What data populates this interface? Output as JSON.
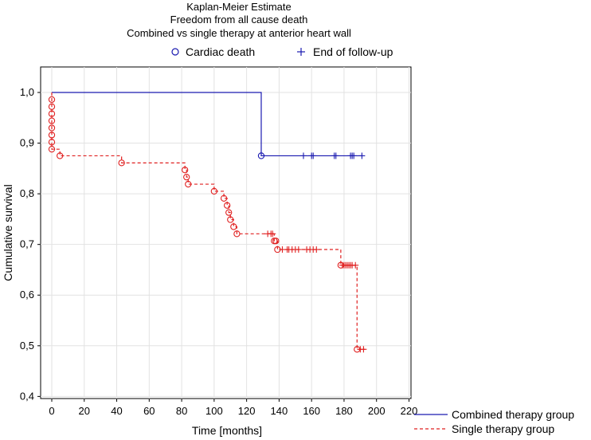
{
  "chart_data": {
    "type": "line",
    "title_lines": [
      "Kaplan-Meier Estimate",
      "Freedom from all cause death",
      "Combined vs single therapy at anterior heart wall"
    ],
    "xlabel": "Time [months]",
    "ylabel": "Cumulative survival",
    "xlim": [
      -5,
      220
    ],
    "ylim": [
      0.4,
      1.05
    ],
    "xticks": [
      0,
      20,
      40,
      60,
      80,
      100,
      120,
      140,
      160,
      180,
      200,
      220
    ],
    "yticks": [
      "0,4",
      "0,5",
      "0,6",
      "0,7",
      "0,8",
      "0,9",
      "1,0"
    ],
    "ytick_values": [
      0.4,
      0.5,
      0.6,
      0.7,
      0.8,
      0.9,
      1.0
    ],
    "grid": true,
    "marker_legend": {
      "placement": "top",
      "items": [
        {
          "label": "Cardiac death",
          "marker": "circle"
        },
        {
          "label": "End of follow-up",
          "marker": "plus"
        }
      ],
      "color": "#1a1ab0"
    },
    "series_legend": {
      "placement": "bottom-right",
      "items": [
        {
          "label": "Combined therapy group",
          "style": "solid",
          "color": "#1a1ab0"
        },
        {
          "label": "Single therapy group",
          "style": "dashed",
          "color": "#e02020"
        }
      ]
    },
    "series": [
      {
        "name": "Combined therapy group",
        "color": "#1a1ab0",
        "dash": false,
        "steps": [
          [
            0,
            1.0
          ],
          [
            129,
            0.875
          ],
          [
            191,
            0.875
          ]
        ],
        "events": [
          129
        ],
        "censored": [
          155,
          160,
          161,
          174,
          175,
          184,
          185,
          186,
          191
        ]
      },
      {
        "name": "Single therapy group",
        "color": "#e02020",
        "dash": true,
        "steps": [
          [
            0,
            1.0
          ],
          [
            0,
            0.986
          ],
          [
            0,
            0.972
          ],
          [
            0,
            0.958
          ],
          [
            0,
            0.944
          ],
          [
            0,
            0.93
          ],
          [
            0,
            0.916
          ],
          [
            0,
            0.902
          ],
          [
            0,
            0.888
          ],
          [
            5,
            0.875
          ],
          [
            43,
            0.861
          ],
          [
            82,
            0.847
          ],
          [
            83,
            0.833
          ],
          [
            84,
            0.819
          ],
          [
            100,
            0.805
          ],
          [
            106,
            0.791
          ],
          [
            108,
            0.777
          ],
          [
            109,
            0.763
          ],
          [
            110,
            0.749
          ],
          [
            112,
            0.735
          ],
          [
            114,
            0.721
          ],
          [
            137,
            0.707
          ],
          [
            138,
            0.707
          ],
          [
            139,
            0.69
          ],
          [
            178,
            0.659
          ],
          [
            188,
            0.493
          ],
          [
            193,
            0.493
          ]
        ],
        "events": [
          [
            0,
            0.986
          ],
          [
            0,
            0.972
          ],
          [
            0,
            0.958
          ],
          [
            0,
            0.944
          ],
          [
            0,
            0.93
          ],
          [
            0,
            0.916
          ],
          [
            0,
            0.902
          ],
          [
            0,
            0.888
          ],
          [
            5,
            0.875
          ],
          [
            43,
            0.861
          ],
          [
            82,
            0.847
          ],
          [
            83,
            0.833
          ],
          [
            84,
            0.819
          ],
          [
            100,
            0.805
          ],
          [
            106,
            0.791
          ],
          [
            108,
            0.777
          ],
          [
            109,
            0.763
          ],
          [
            110,
            0.749
          ],
          [
            112,
            0.735
          ],
          [
            114,
            0.721
          ],
          [
            137,
            0.707
          ],
          [
            138,
            0.707
          ],
          [
            139,
            0.69
          ],
          [
            178,
            0.659
          ],
          [
            188,
            0.493
          ]
        ],
        "censored": [
          [
            133,
            0.721
          ],
          [
            135,
            0.721
          ],
          [
            136,
            0.721
          ],
          [
            142,
            0.69
          ],
          [
            145,
            0.69
          ],
          [
            146,
            0.69
          ],
          [
            148,
            0.69
          ],
          [
            150,
            0.69
          ],
          [
            152,
            0.69
          ],
          [
            157,
            0.69
          ],
          [
            159,
            0.69
          ],
          [
            161,
            0.69
          ],
          [
            163,
            0.69
          ],
          [
            179,
            0.659
          ],
          [
            180,
            0.659
          ],
          [
            181,
            0.659
          ],
          [
            182,
            0.659
          ],
          [
            183,
            0.659
          ],
          [
            184,
            0.659
          ],
          [
            185,
            0.659
          ],
          [
            187,
            0.659
          ],
          [
            190,
            0.493
          ],
          [
            192,
            0.493
          ]
        ]
      }
    ]
  }
}
